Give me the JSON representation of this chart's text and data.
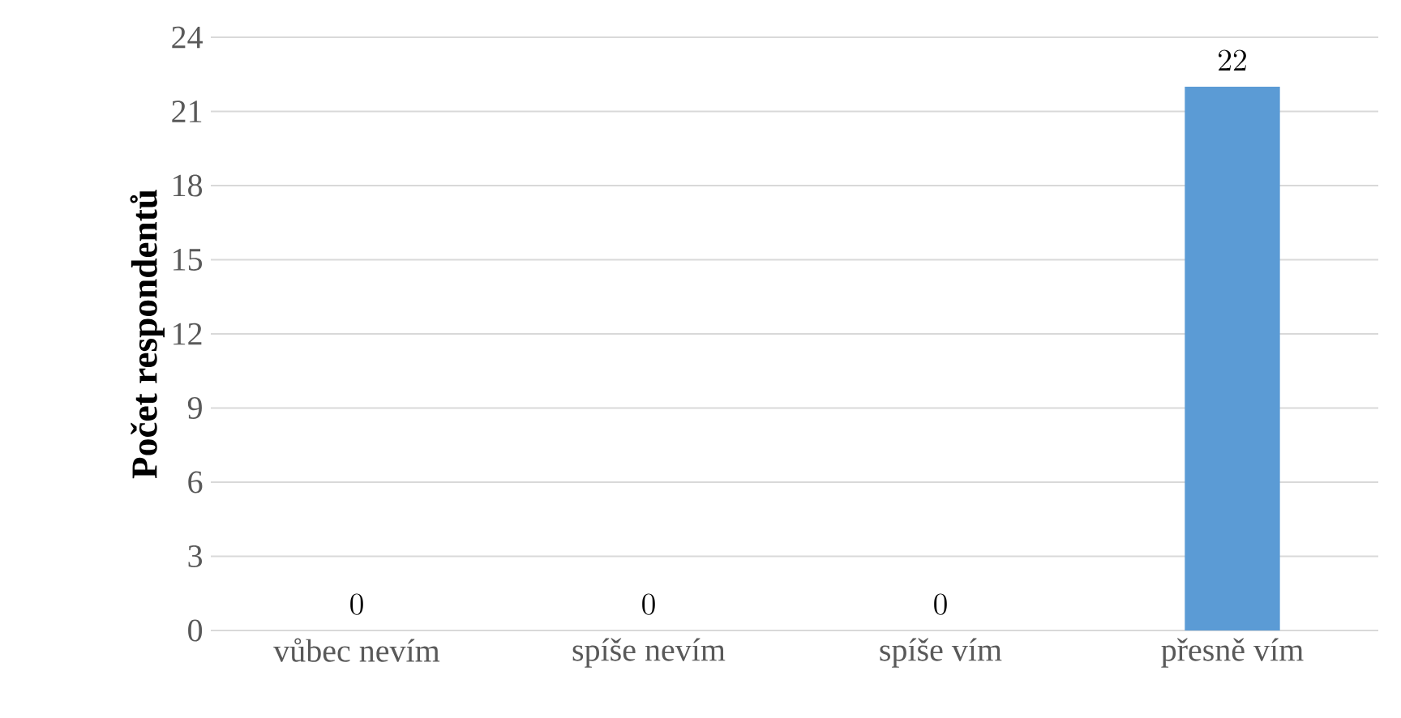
{
  "chart_data": {
    "type": "bar",
    "ylabel": "Počet respondentů",
    "categories": [
      "vůbec nevím",
      "spíše nevím",
      "spíše vím",
      "přesně vím"
    ],
    "values": [
      0,
      0,
      0,
      22
    ],
    "color": "#5b9bd5",
    "ylim": [
      0,
      24
    ],
    "yticks": [
      0,
      3,
      6,
      9,
      12,
      15,
      18,
      21,
      24
    ],
    "grid": "y",
    "data_labels": true
  }
}
